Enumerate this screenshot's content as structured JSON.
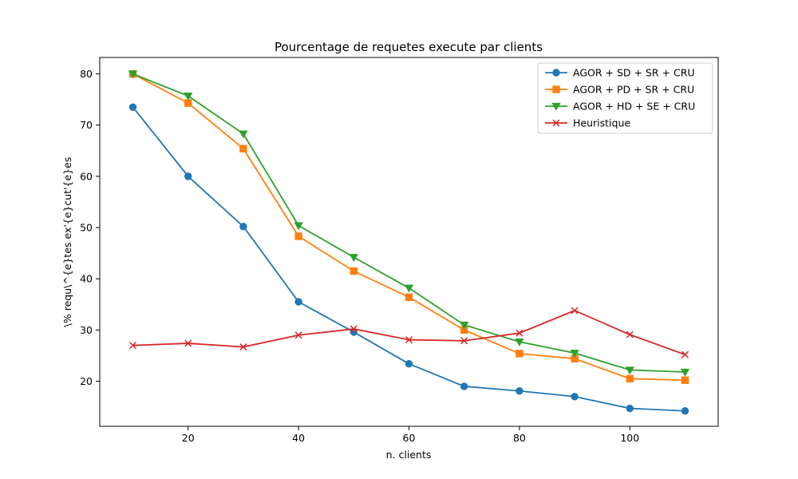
{
  "chart_data": {
    "type": "line",
    "title": "Pourcentage de requetes execute par clients",
    "xlabel": "n. clients",
    "ylabel": "\\% requ\\^{e}tes ex'{e}cut'{e}es",
    "xlim": [
      4,
      116
    ],
    "ylim": [
      11.2,
      83.2
    ],
    "xticks": [
      20,
      40,
      60,
      80,
      100
    ],
    "yticks": [
      20,
      30,
      40,
      50,
      60,
      70,
      80
    ],
    "x": [
      10,
      20,
      30,
      40,
      50,
      60,
      70,
      80,
      90,
      100,
      110
    ],
    "grid": false,
    "legend_position": "top-right",
    "series": [
      {
        "name": "AGOR + SD + SR + CRU",
        "color": "#1f77b4",
        "marker": "circle",
        "values": [
          73.5,
          60.0,
          50.2,
          35.5,
          29.6,
          23.4,
          19.0,
          18.1,
          17.0,
          14.7,
          14.2
        ]
      },
      {
        "name": "AGOR + PD + SR + CRU",
        "color": "#ff7f0e",
        "marker": "square",
        "values": [
          80.0,
          74.3,
          65.4,
          48.3,
          41.5,
          36.4,
          30.0,
          25.4,
          24.4,
          20.5,
          20.2
        ]
      },
      {
        "name": "AGOR + HD + SE + CRU",
        "color": "#2ca02c",
        "marker": "triangle-down",
        "values": [
          80.0,
          75.7,
          68.3,
          50.4,
          44.2,
          38.2,
          31.0,
          27.7,
          25.5,
          22.2,
          21.8
        ]
      },
      {
        "name": "Heuristique",
        "color": "#d62728",
        "marker": "x",
        "values": [
          27.0,
          27.4,
          26.7,
          29.0,
          30.2,
          28.1,
          27.9,
          29.4,
          33.8,
          29.1,
          25.2
        ]
      }
    ]
  }
}
